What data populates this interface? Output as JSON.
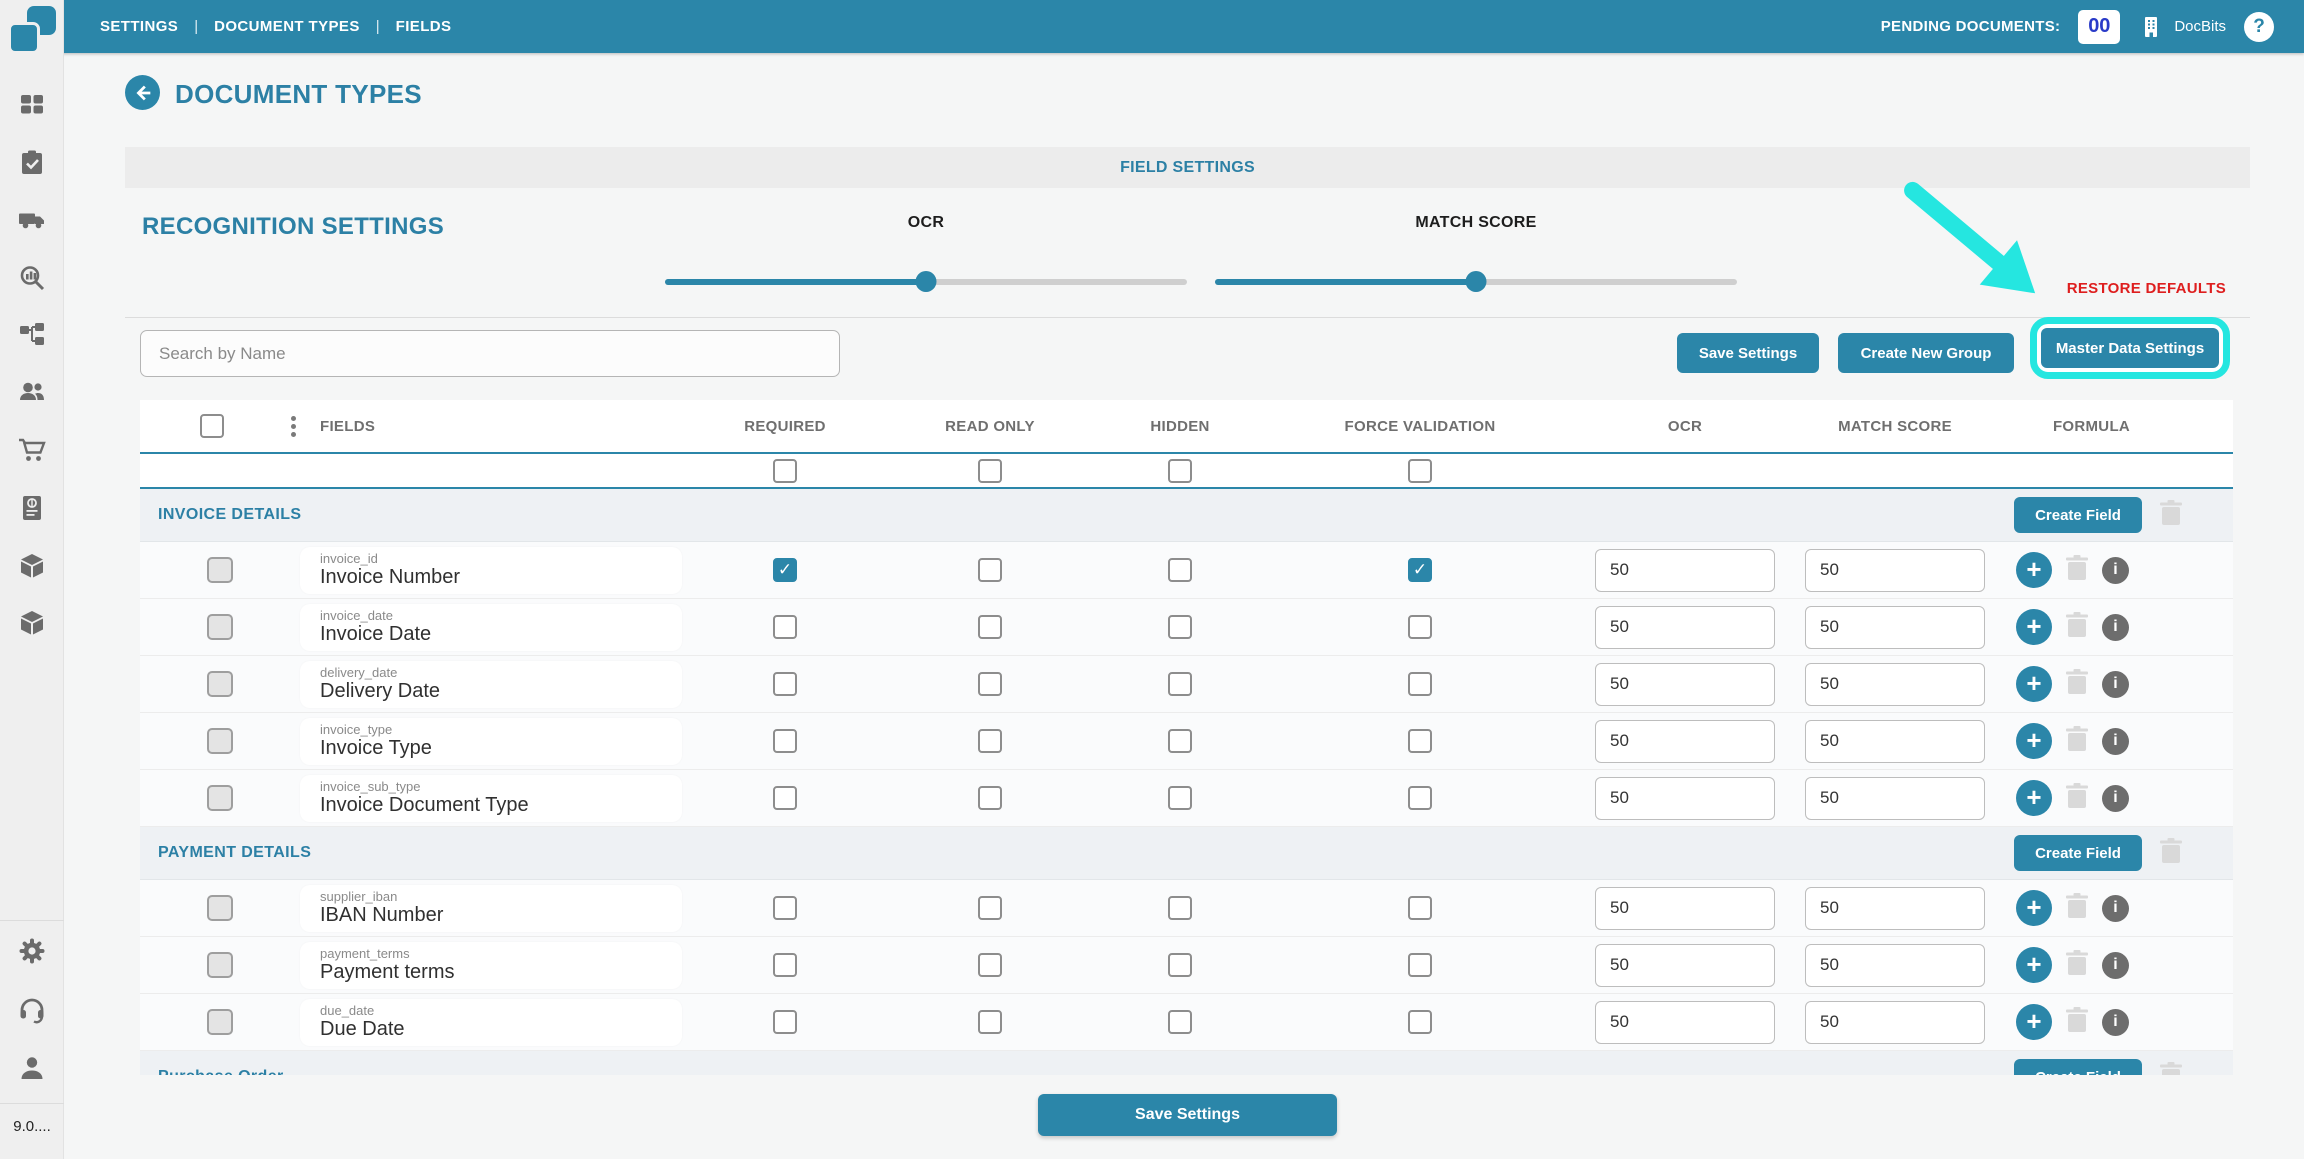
{
  "topbar": {
    "nav": [
      "SETTINGS",
      "DOCUMENT TYPES",
      "FIELDS"
    ],
    "pending_label": "PENDING DOCUMENTS:",
    "pending_count": "00",
    "brand": "DocBits"
  },
  "sidebar": {
    "icons": [
      "dashboard",
      "tasks-clipboard",
      "truck-shipments",
      "analytics-search",
      "workflow",
      "users",
      "shopping-cart",
      "invoice-receipt",
      "package",
      "package-alt"
    ],
    "bottom_icons": [
      "settings-gear",
      "support-headset",
      "profile-person"
    ],
    "version": "9.0...."
  },
  "header": {
    "title": "DOCUMENT TYPES"
  },
  "panel": {
    "banner": "FIELD SETTINGS",
    "recognition_title": "RECOGNITION SETTINGS",
    "restore_defaults": "RESTORE DEFAULTS",
    "sliders": [
      {
        "label": "OCR",
        "value": 50
      },
      {
        "label": "MATCH SCORE",
        "value": 50
      }
    ]
  },
  "toolbar": {
    "search_placeholder": "Search by Name",
    "save_label": "Save Settings",
    "create_group_label": "Create New Group",
    "master_data_label": "Master Data Settings"
  },
  "table": {
    "headers": [
      "FIELDS",
      "REQUIRED",
      "READ ONLY",
      "HIDDEN",
      "FORCE VALIDATION",
      "OCR",
      "MATCH SCORE",
      "FORMULA"
    ],
    "create_field_label": "Create Field",
    "groups": [
      {
        "name": "INVOICE DETAILS",
        "rows": [
          {
            "key": "invoice_id",
            "label": "Invoice Number",
            "required": true,
            "read_only": false,
            "hidden": false,
            "force_validation": true,
            "ocr": "50",
            "match_score": "50"
          },
          {
            "key": "invoice_date",
            "label": "Invoice Date",
            "required": false,
            "read_only": false,
            "hidden": false,
            "force_validation": false,
            "ocr": "50",
            "match_score": "50"
          },
          {
            "key": "delivery_date",
            "label": "Delivery Date",
            "required": false,
            "read_only": false,
            "hidden": false,
            "force_validation": false,
            "ocr": "50",
            "match_score": "50"
          },
          {
            "key": "invoice_type",
            "label": "Invoice Type",
            "required": false,
            "read_only": false,
            "hidden": false,
            "force_validation": false,
            "ocr": "50",
            "match_score": "50"
          },
          {
            "key": "invoice_sub_type",
            "label": "Invoice Document Type",
            "required": false,
            "read_only": false,
            "hidden": false,
            "force_validation": false,
            "ocr": "50",
            "match_score": "50"
          }
        ]
      },
      {
        "name": "PAYMENT DETAILS",
        "rows": [
          {
            "key": "supplier_iban",
            "label": "IBAN Number",
            "required": false,
            "read_only": false,
            "hidden": false,
            "force_validation": false,
            "ocr": "50",
            "match_score": "50"
          },
          {
            "key": "payment_terms",
            "label": "Payment terms",
            "required": false,
            "read_only": false,
            "hidden": false,
            "force_validation": false,
            "ocr": "50",
            "match_score": "50"
          },
          {
            "key": "due_date",
            "label": "Due Date",
            "required": false,
            "read_only": false,
            "hidden": false,
            "force_validation": false,
            "ocr": "50",
            "match_score": "50"
          }
        ]
      },
      {
        "name": "Purchase Order",
        "rows": []
      }
    ]
  },
  "footer": {
    "save_label": "Save Settings"
  },
  "colors": {
    "primary_teal": "#2b86a9",
    "annotation_cyan": "#25e6e0",
    "restore_red": "#de1e1e",
    "pending_blue": "#2a3bc8"
  }
}
